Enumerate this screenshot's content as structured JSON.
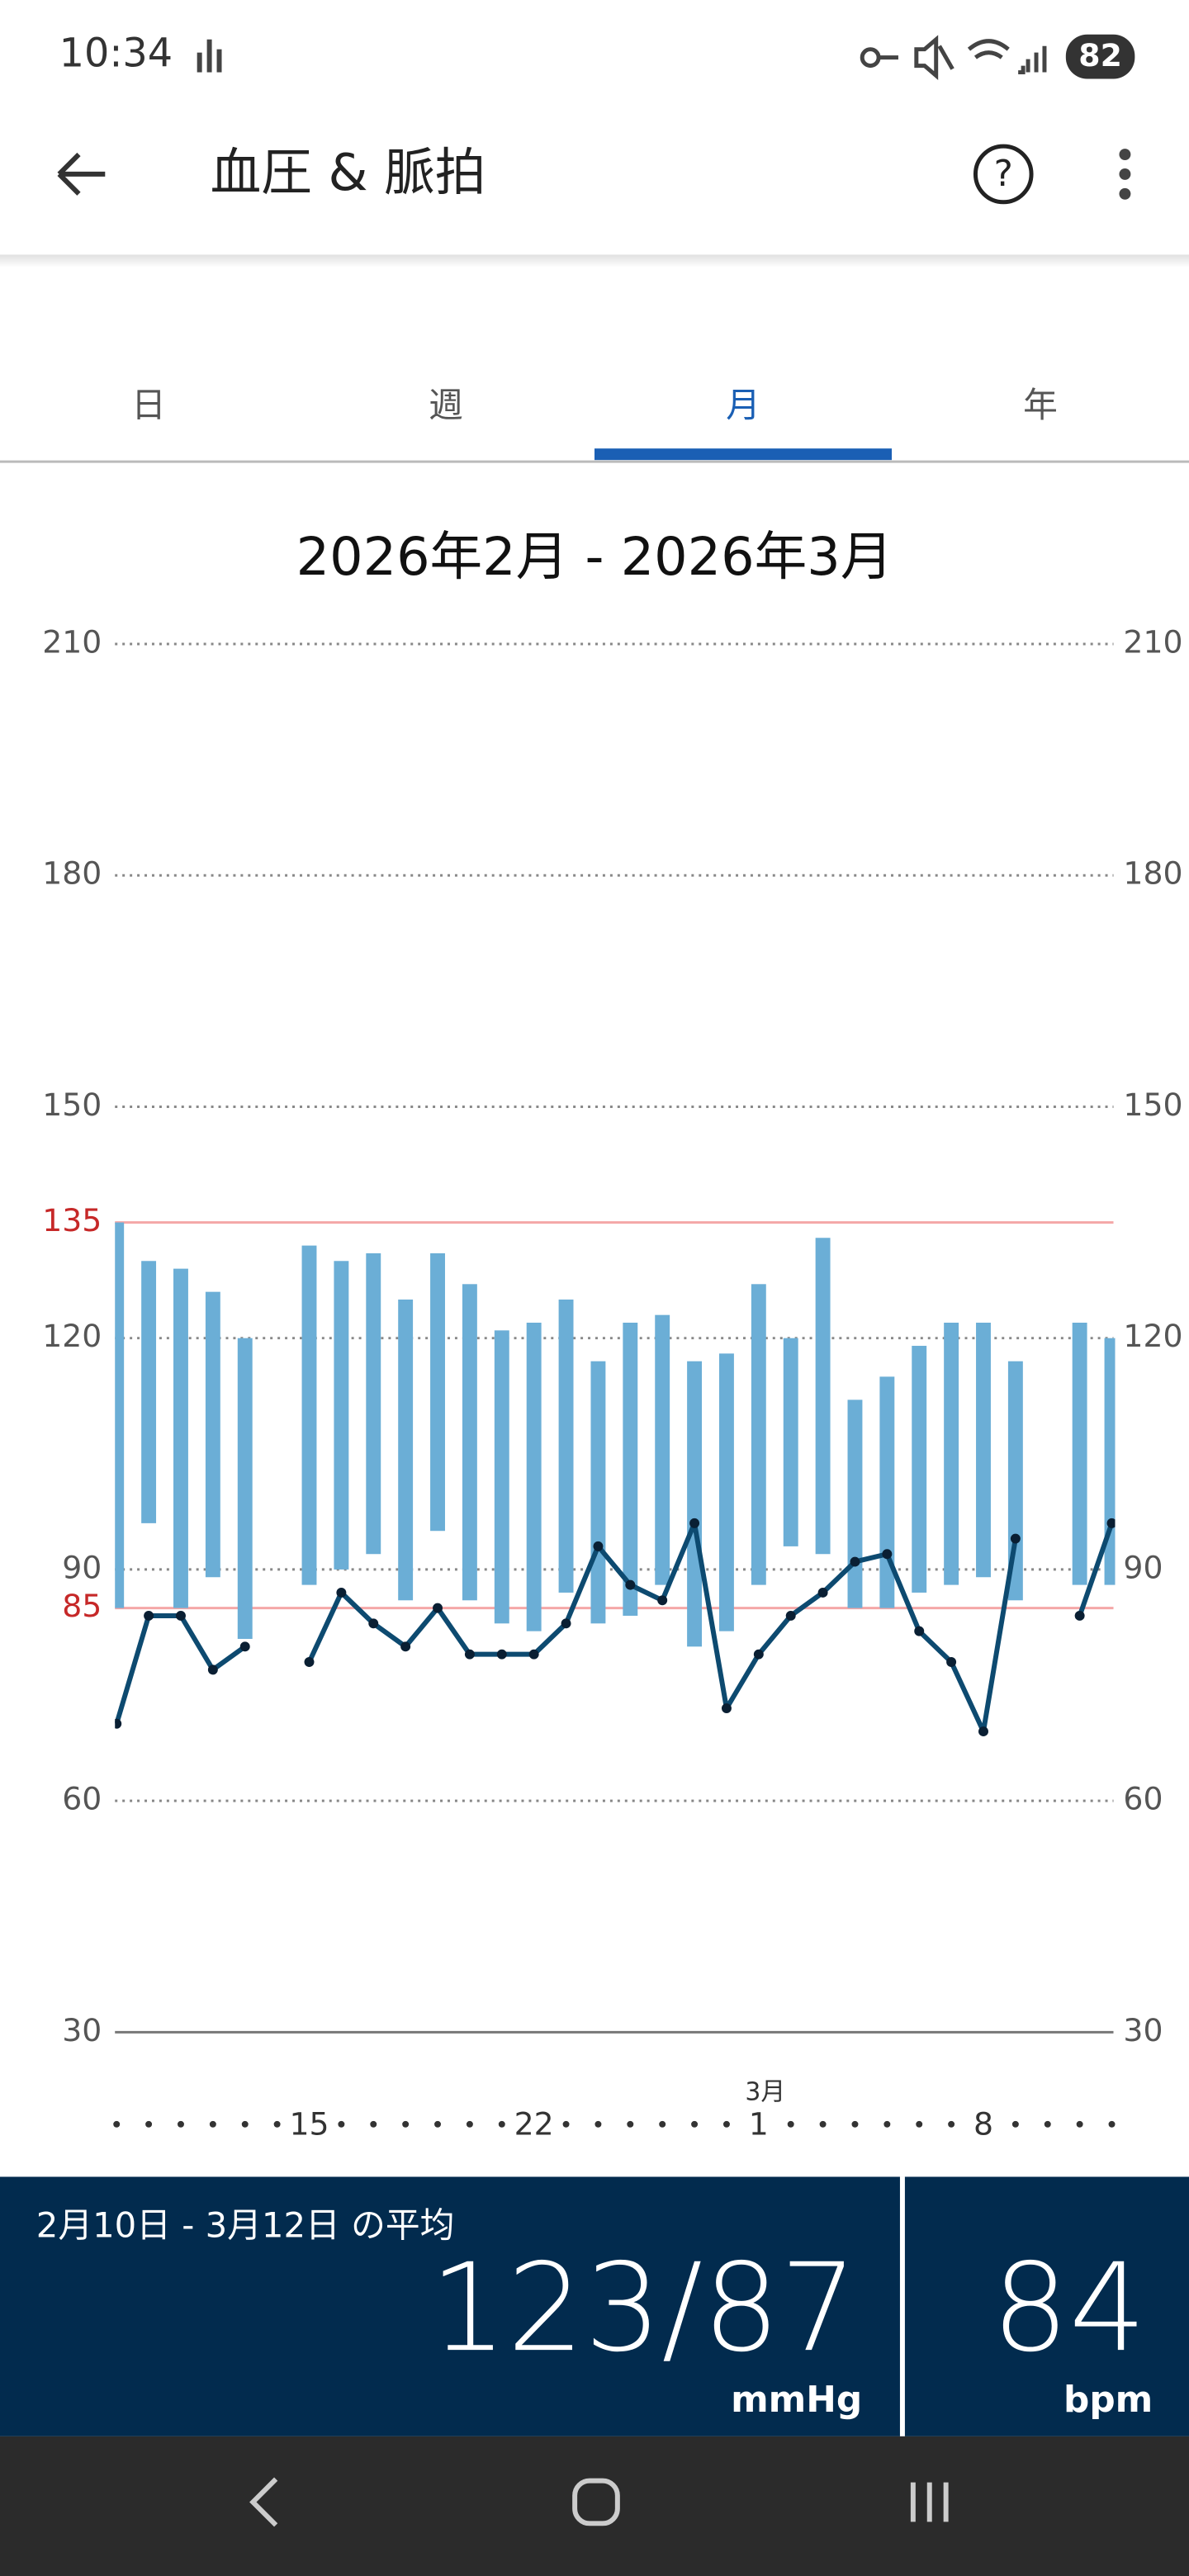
{
  "status_bar": {
    "time": "10:34",
    "battery": "82"
  },
  "header": {
    "title": "血圧 & 脈拍"
  },
  "tabs": {
    "items": [
      "日",
      "週",
      "月",
      "年"
    ],
    "active": 2
  },
  "chart_data": {
    "type": "range-line",
    "title": "2026年2月 - 2026年3月",
    "categories": [
      null,
      null,
      null,
      null,
      null,
      null,
      "15",
      null,
      null,
      null,
      null,
      null,
      null,
      "22",
      null,
      null,
      null,
      null,
      null,
      null,
      "1",
      null,
      null,
      null,
      null,
      null,
      null,
      "8",
      null,
      null,
      null,
      null
    ],
    "month_label": "3月",
    "ylim": [
      30,
      210
    ],
    "yticks": [
      30,
      60,
      90,
      120,
      150,
      180,
      210
    ],
    "grid": true,
    "reference_lines": [
      135,
      85
    ],
    "reference_color": "#f4a7a7",
    "reference_label_color": "#c62828",
    "series": [
      {
        "type": "range",
        "color": "#6baed6",
        "high": [
          135,
          130,
          129,
          126,
          120,
          null,
          132,
          130,
          131,
          125,
          131,
          127,
          121,
          122,
          125,
          117,
          122,
          123,
          117,
          118,
          127,
          120,
          133,
          112,
          115,
          119,
          122,
          122,
          117,
          null,
          122,
          120
        ],
        "low": [
          85,
          96,
          85,
          89,
          81,
          null,
          88,
          90,
          92,
          86,
          95,
          86,
          83,
          82,
          87,
          83,
          84,
          88,
          80,
          82,
          88,
          93,
          92,
          85,
          85,
          87,
          88,
          89,
          86,
          null,
          88,
          88
        ]
      },
      {
        "type": "line",
        "color": "#0d4a70",
        "values": [
          70,
          84,
          84,
          77,
          80,
          null,
          78,
          87,
          83,
          80,
          85,
          79,
          79,
          79,
          83,
          93,
          88,
          86,
          96,
          72,
          79,
          84,
          87,
          91,
          92,
          82,
          78,
          69,
          94,
          null,
          84,
          96
        ]
      }
    ]
  },
  "summary": {
    "label": "2月10日 - 3月12日 の平均",
    "bp": "123/87",
    "bp_unit": "mmHg",
    "pulse": "84",
    "pulse_unit": "bpm"
  }
}
